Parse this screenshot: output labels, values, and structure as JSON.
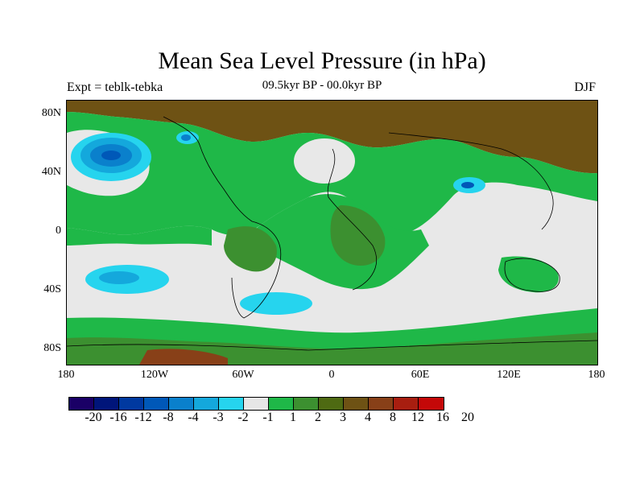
{
  "title": "Mean Sea Level Pressure (in hPa)",
  "subtitle": "09.5kyr BP - 00.0kyr BP",
  "left_label": "Expt = teblk-tebka",
  "right_label": "DJF",
  "y_axis_labels": [
    "80N",
    "40N",
    "0",
    "40S",
    "80S"
  ],
  "x_axis_labels": [
    "180",
    "120W",
    "60W",
    "0",
    "60E",
    "120E",
    "180"
  ],
  "colorbar": {
    "colors": [
      "#1a0066",
      "#00157a",
      "#0039a0",
      "#0058b8",
      "#0a80cc",
      "#14a8dc",
      "#26d4ee",
      "#e6e6e6",
      "#1fb848",
      "#3c9030",
      "#4e6a12",
      "#6e5214",
      "#884018",
      "#a81e10",
      "#c40808"
    ],
    "labels": [
      "-20",
      "-16",
      "-12",
      "-8",
      "-4",
      "-3",
      "-2",
      "-1",
      "1",
      "2",
      "3",
      "4",
      "8",
      "12",
      "16",
      "20"
    ]
  },
  "colors": {
    "background": "#e8e8e8",
    "green": "#1fb848",
    "darkgreen": "#3c9030",
    "olive": "#4e6a12",
    "brown": "#6e5214",
    "rust": "#884018",
    "cyan": "#26d4ee",
    "lightblue": "#14a8dc",
    "blue": "#0a80cc",
    "darkblue": "#0058b8",
    "coast": "#000000"
  }
}
